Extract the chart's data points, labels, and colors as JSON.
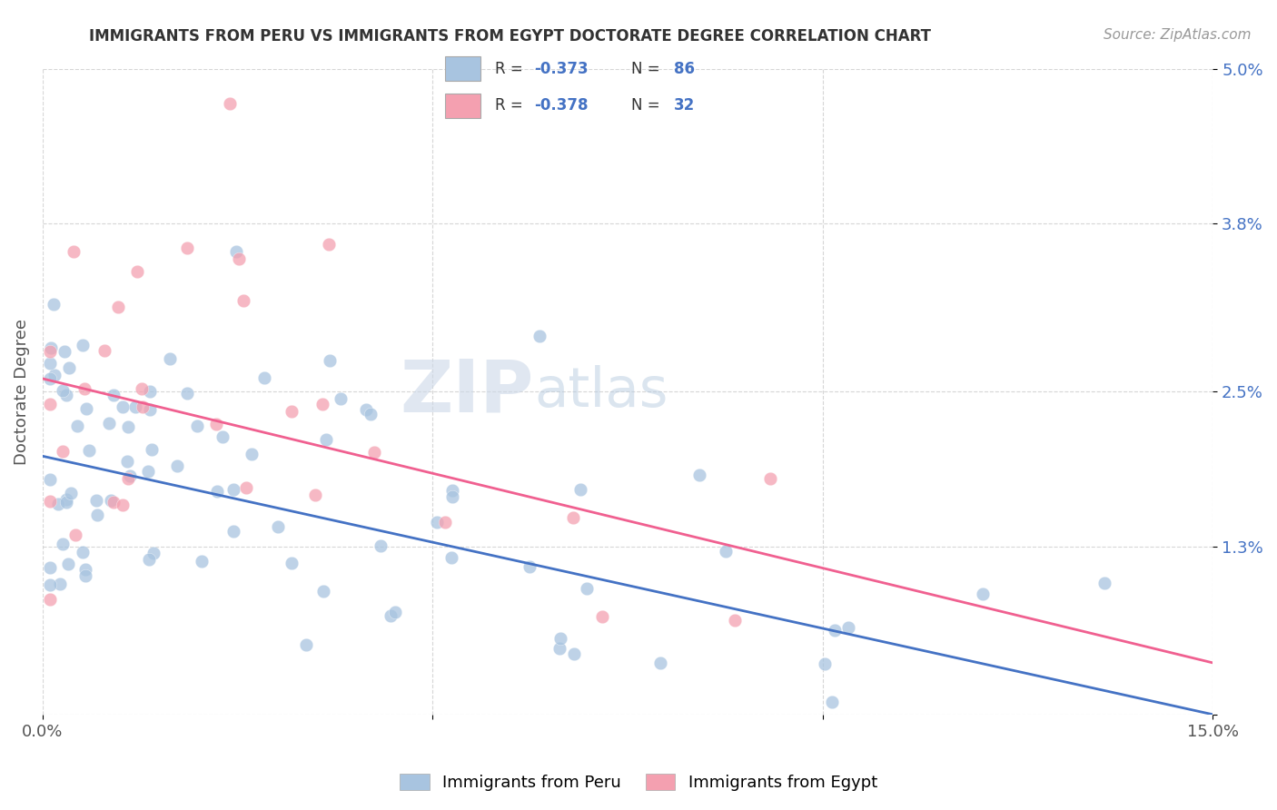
{
  "title": "IMMIGRANTS FROM PERU VS IMMIGRANTS FROM EGYPT DOCTORATE DEGREE CORRELATION CHART",
  "source": "Source: ZipAtlas.com",
  "ylabel": "Doctorate Degree",
  "peru_color": "#a8c4e0",
  "egypt_color": "#f4a0b0",
  "peru_line_color": "#4472c4",
  "egypt_line_color": "#f06090",
  "peru_R": "-0.373",
  "peru_N": "86",
  "egypt_R": "-0.378",
  "egypt_N": "32",
  "xlim": [
    0.0,
    0.15
  ],
  "ylim": [
    0.0,
    0.05
  ],
  "ytick_positions": [
    0.0,
    0.013,
    0.025,
    0.038,
    0.05
  ],
  "ytick_labels": [
    "",
    "1.3%",
    "2.5%",
    "3.8%",
    "5.0%"
  ],
  "xtick_positions": [
    0.0,
    0.05,
    0.1,
    0.15
  ],
  "xtick_labels": [
    "0.0%",
    "",
    "",
    "15.0%"
  ],
  "peru_line_x0": 0.0,
  "peru_line_y0": 0.02,
  "peru_line_x1": 0.15,
  "peru_line_y1": 0.0,
  "egypt_line_x0": 0.0,
  "egypt_line_y0": 0.026,
  "egypt_line_x1": 0.15,
  "egypt_line_y1": 0.004,
  "watermark_zip": "ZIP",
  "watermark_atlas": "atlas",
  "legend_label_peru": "Immigrants from Peru",
  "legend_label_egypt": "Immigrants from Egypt",
  "grid_color": "#cccccc",
  "tick_color": "#4472c4",
  "title_color": "#333333",
  "source_color": "#999999"
}
